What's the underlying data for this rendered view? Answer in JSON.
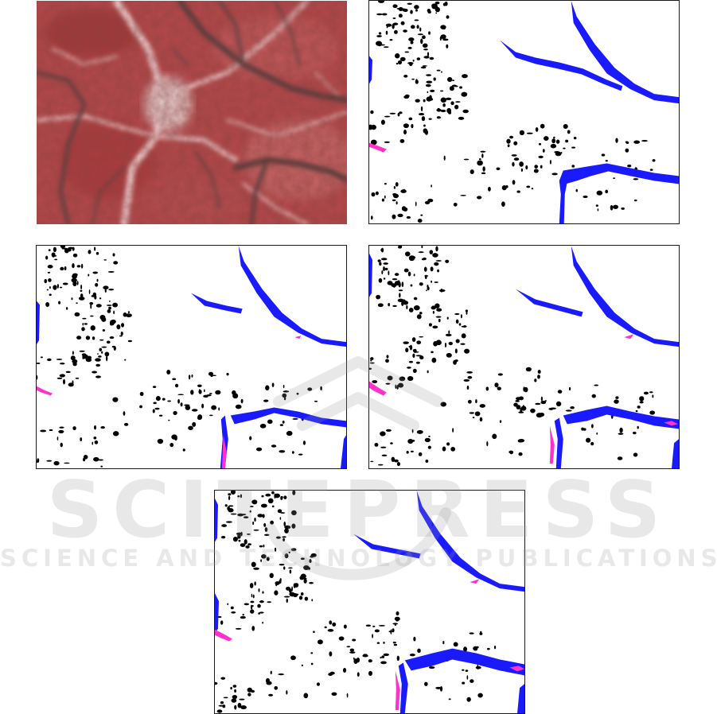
{
  "figure": {
    "panels": [
      {
        "id": "a",
        "kind": "shaded-relief-dem"
      },
      {
        "id": "b",
        "kind": "classification-map"
      },
      {
        "id": "c",
        "kind": "classification-map"
      },
      {
        "id": "d",
        "kind": "classification-map"
      },
      {
        "id": "e",
        "kind": "classification-map"
      }
    ],
    "legend_colors": {
      "black_class": "#000000",
      "blue_class": "#1a1aff",
      "magenta_class": "#ff33cc",
      "background": "#ffffff"
    }
  },
  "watermark": {
    "main_text": "SCITEPRESS",
    "sub_text": "SCIENCE AND TECHNOLOGY PUBLICATIONS"
  }
}
